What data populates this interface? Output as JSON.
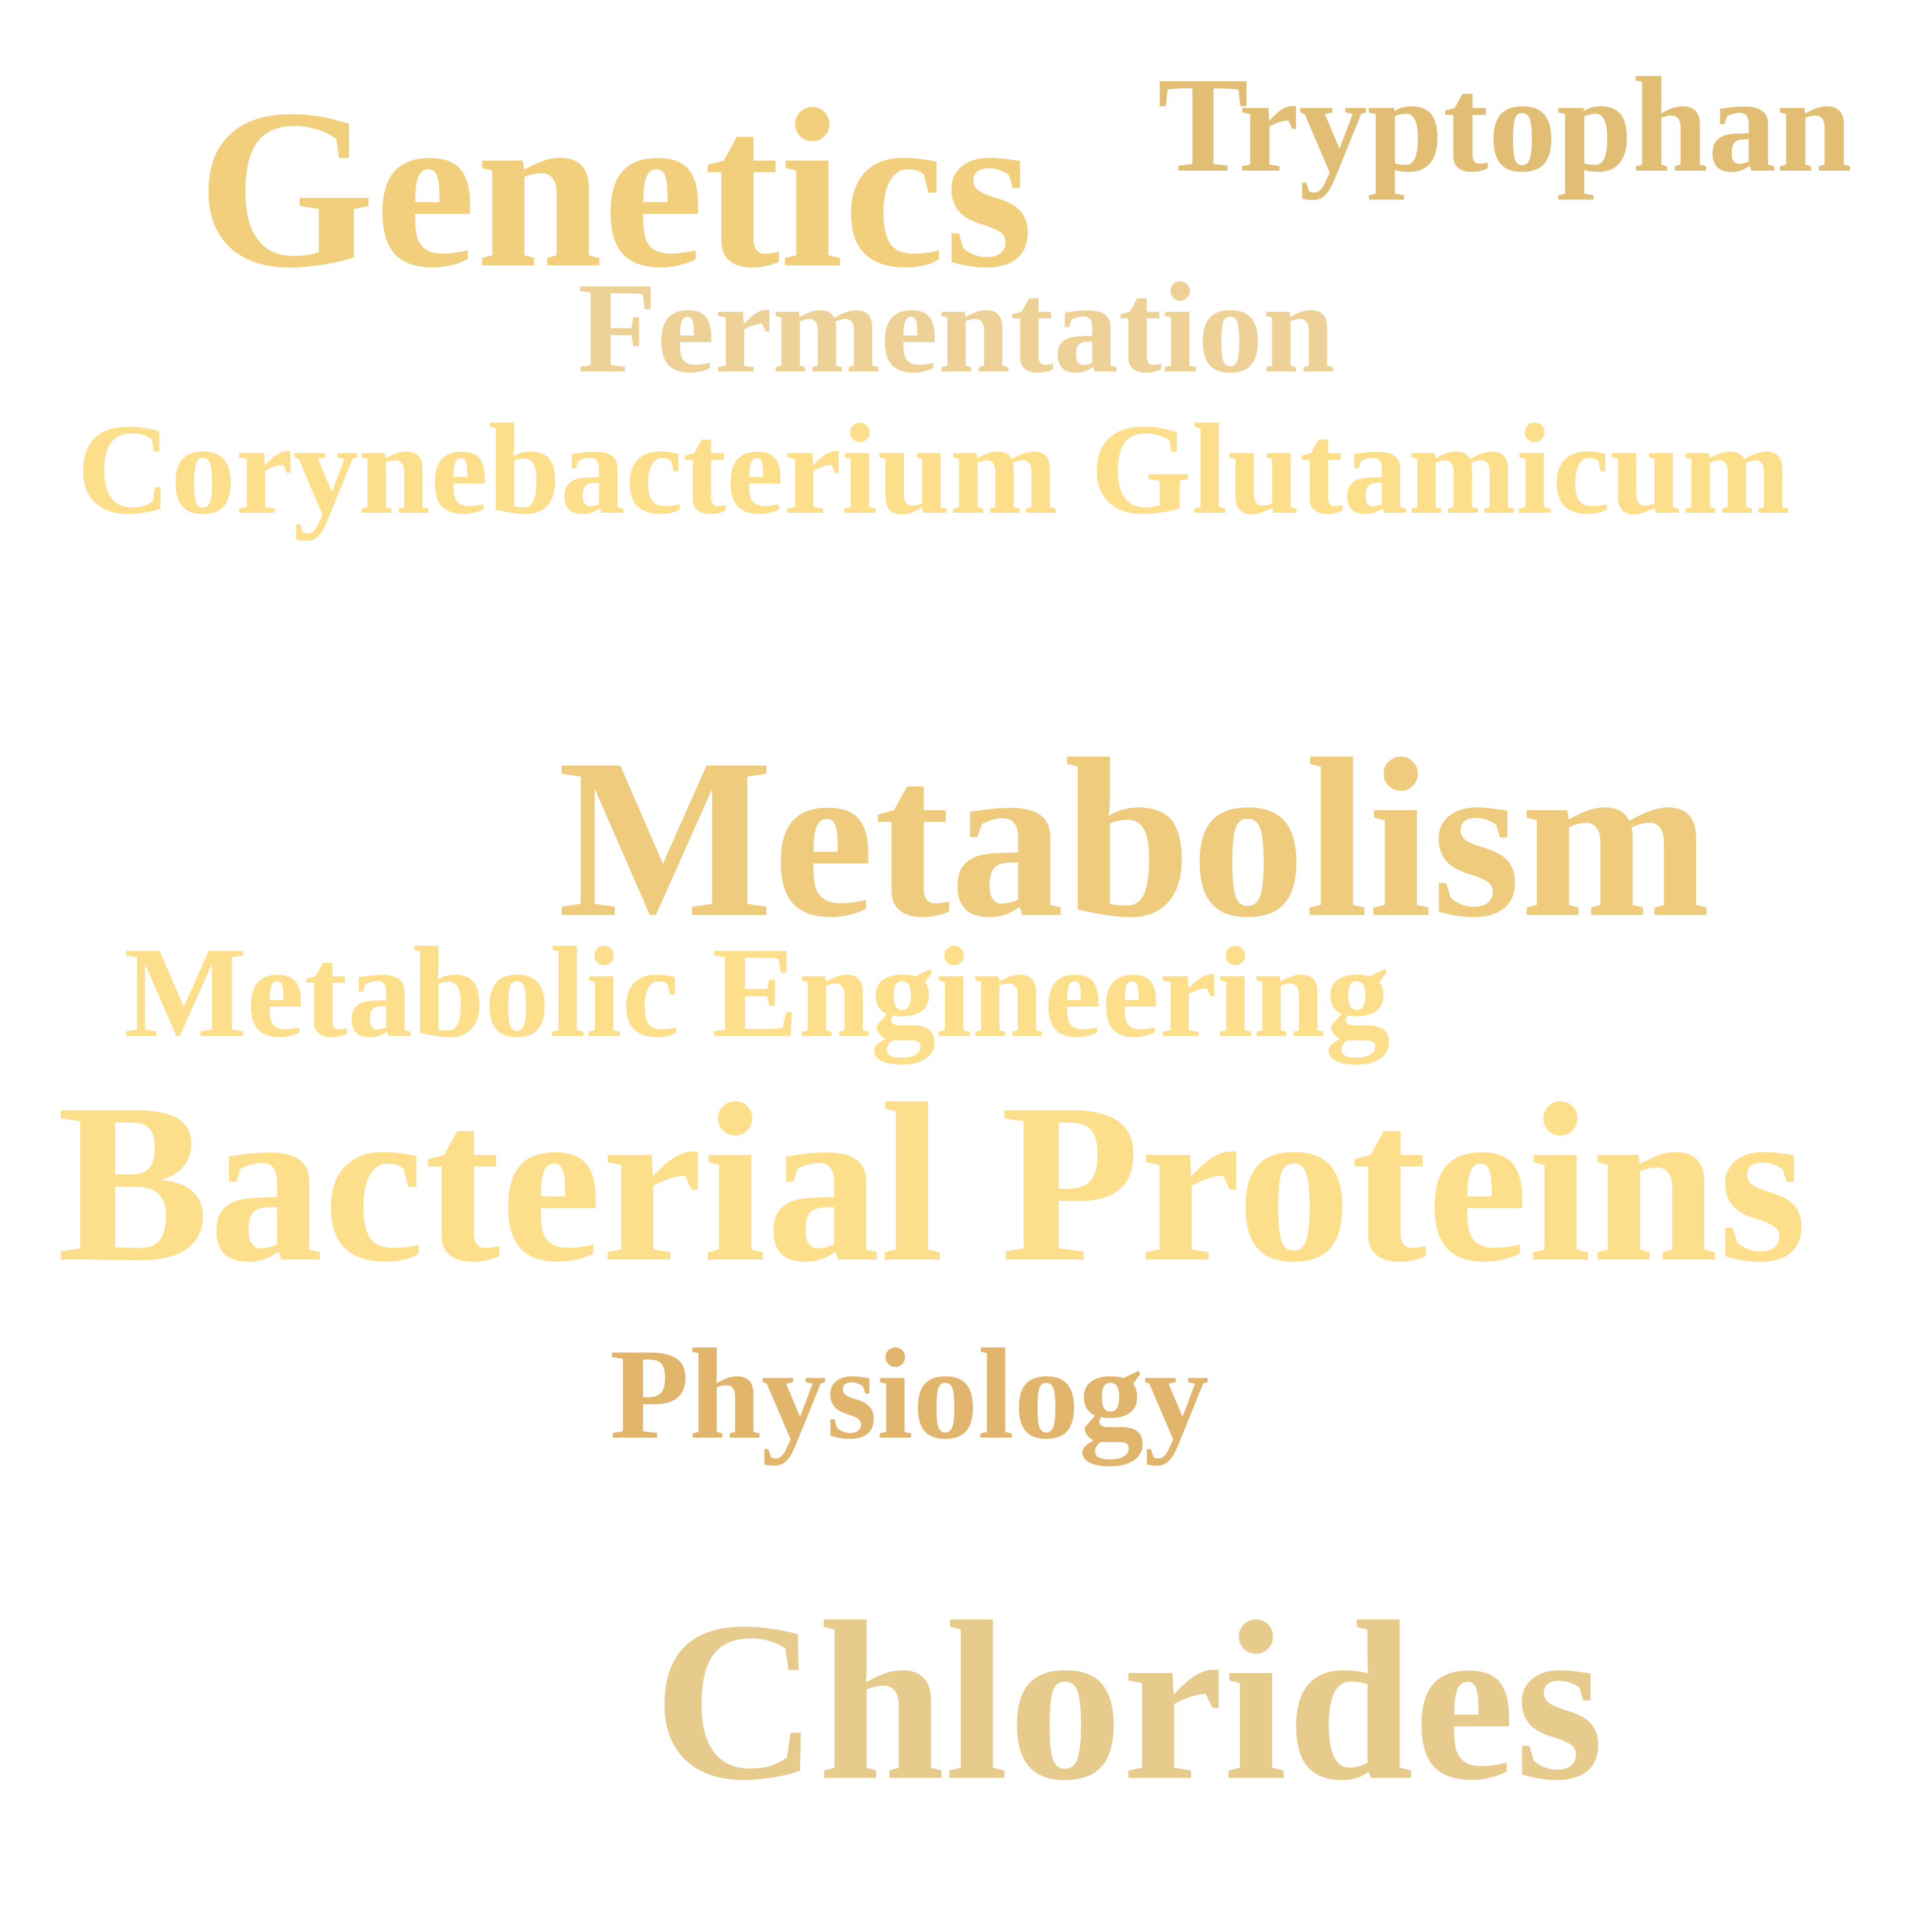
{
  "words": [
    {
      "text": "Genetics",
      "color": "#F2CF7C"
    },
    {
      "text": "Tryptophan",
      "color": "#E2BD74"
    },
    {
      "text": "Fermentation",
      "color": "#EDD196"
    },
    {
      "text": "Corynebacterium Glutamicum",
      "color": "#FDDE8A"
    },
    {
      "text": "Metabolism",
      "color": "#EECB7D"
    },
    {
      "text": "Metabolic Engineering",
      "color": "#FDDE8A"
    },
    {
      "text": "Bacterial Proteins",
      "color": "#FDDE8A"
    },
    {
      "text": "Physiology",
      "color": "#E2B56D"
    },
    {
      "text": "Chlorides",
      "color": "#E6CB8C"
    }
  ]
}
